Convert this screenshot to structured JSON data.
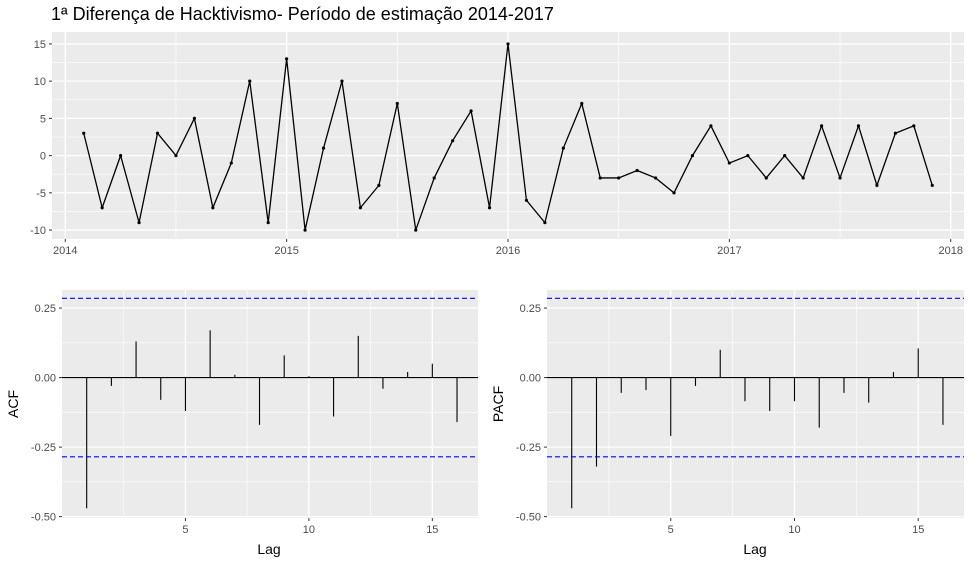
{
  "chart_data": [
    {
      "type": "line",
      "title": "1ª Diferença de Hacktivismo- Período de estimação 2014-2017",
      "xlabel": "",
      "ylabel": "",
      "x_ticks": [
        "2014",
        "2015",
        "2016",
        "2017",
        "2018"
      ],
      "y_ticks": [
        "-10",
        "-5",
        "0",
        "5",
        "10",
        "15"
      ],
      "xlim": [
        2013.94,
        2018.06
      ],
      "ylim": [
        -11.2,
        16.6
      ],
      "x_start": 2014.0833,
      "x_step": 0.0833333,
      "values": [
        3,
        -7,
        0,
        -9,
        3,
        0,
        5,
        -7,
        -1,
        10,
        -9,
        13,
        -10,
        1,
        10,
        -7,
        -4,
        7,
        -10,
        -3,
        2,
        6,
        -7,
        15,
        -6,
        -9,
        1,
        7,
        -3,
        -3,
        -2,
        -3,
        -5,
        0,
        4,
        -1,
        0,
        -3,
        0,
        -3,
        4,
        -3,
        4,
        -4,
        3,
        4,
        -4
      ],
      "grid": true,
      "line_color": "#000000"
    },
    {
      "type": "bar",
      "xlabel": "Lag",
      "ylabel": "ACF",
      "x_ticks": [
        "5",
        "10",
        "15"
      ],
      "y_ticks": [
        "-0.50",
        "-0.25",
        "0.00",
        "0.25"
      ],
      "xlim": [
        0.0,
        16.85
      ],
      "ylim": [
        -0.505,
        0.315
      ],
      "lags": [
        1,
        2,
        3,
        4,
        5,
        6,
        7,
        8,
        9,
        10,
        11,
        12,
        13,
        14,
        15,
        16
      ],
      "values": [
        -0.47,
        -0.03,
        0.13,
        -0.08,
        -0.12,
        0.17,
        0.01,
        -0.17,
        0.08,
        0.005,
        -0.14,
        0.15,
        -0.04,
        0.02,
        0.05,
        -0.16
      ],
      "conf_limit": 0.285,
      "conf_color": "#0000ff",
      "grid": true
    },
    {
      "type": "bar",
      "xlabel": "Lag",
      "ylabel": "PACF",
      "x_ticks": [
        "5",
        "10",
        "15"
      ],
      "y_ticks": [
        "-0.50",
        "-0.25",
        "0.00",
        "0.25"
      ],
      "xlim": [
        0.0,
        16.85
      ],
      "ylim": [
        -0.505,
        0.315
      ],
      "lags": [
        1,
        2,
        3,
        4,
        5,
        6,
        7,
        8,
        9,
        10,
        11,
        12,
        13,
        14,
        15,
        16
      ],
      "values": [
        -0.47,
        -0.32,
        -0.055,
        -0.045,
        -0.21,
        -0.03,
        0.1,
        -0.085,
        -0.12,
        -0.085,
        -0.18,
        -0.055,
        -0.09,
        0.02,
        0.105,
        -0.17
      ],
      "conf_limit": 0.285,
      "conf_color": "#0000ff",
      "grid": true
    }
  ]
}
